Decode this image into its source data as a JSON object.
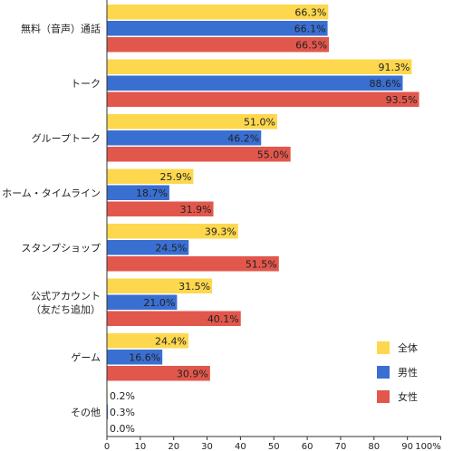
{
  "chart_data": {
    "type": "bar",
    "orientation": "horizontal",
    "categories": [
      [
        "無料（音声）通話"
      ],
      [
        "トーク"
      ],
      [
        "グループトーク"
      ],
      [
        "ホーム・タイムライン"
      ],
      [
        "スタンプショップ"
      ],
      [
        "公式アカウント",
        "（友だち追加）"
      ],
      [
        "ゲーム"
      ],
      [
        "その他"
      ]
    ],
    "series": [
      {
        "name": "全体",
        "color": "#fdd84e",
        "values": [
          66.3,
          91.3,
          51.0,
          25.9,
          39.3,
          31.5,
          24.4,
          0.2
        ]
      },
      {
        "name": "男性",
        "color": "#3a6fd2",
        "values": [
          66.1,
          88.6,
          46.2,
          18.7,
          24.5,
          21.0,
          16.6,
          0.3
        ]
      },
      {
        "name": "女性",
        "color": "#e2574c",
        "values": [
          66.5,
          93.5,
          55.0,
          31.9,
          51.5,
          40.1,
          30.9,
          0.0
        ]
      }
    ],
    "data_labels": [
      [
        "66.3%",
        "91.3%",
        "51.0%",
        "25.9%",
        "39.3%",
        "31.5%",
        "24.4%",
        "0.2%"
      ],
      [
        "66.1%",
        "88.6%",
        "46.2%",
        "18.7%",
        "24.5%",
        "21.0%",
        "16.6%",
        "0.3%"
      ],
      [
        "66.5%",
        "93.5%",
        "55.0%",
        "31.9%",
        "51.5%",
        "40.1%",
        "30.9%",
        "0.0%"
      ]
    ],
    "x_ticks": [
      "0",
      "10",
      "20",
      "30",
      "40",
      "50",
      "60",
      "70",
      "80",
      "90",
      "100%"
    ],
    "xlim": [
      0,
      100
    ],
    "legend_position": "bottom-right",
    "grid": false
  }
}
